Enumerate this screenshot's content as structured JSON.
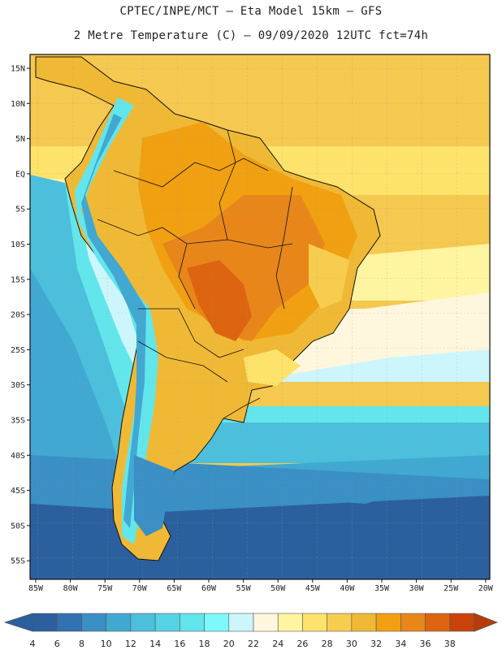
{
  "header": {
    "line1": "CPTEC/INPE/MCT –  Eta Model 15km – GFS",
    "line2": "2 Metre Temperature (C) – 09/09/2020 12UTC fct=74h"
  },
  "map": {
    "lat_labels": [
      "15N",
      "10N",
      "5N",
      "EQ",
      "5S",
      "10S",
      "15S",
      "20S",
      "25S",
      "30S",
      "35S",
      "40S",
      "45S",
      "50S",
      "55S"
    ],
    "lon_labels": [
      "85W",
      "80W",
      "75W",
      "70W",
      "65W",
      "60W",
      "55W",
      "50W",
      "45W",
      "40W",
      "35W",
      "30W",
      "25W",
      "20W"
    ],
    "lat_min": -58,
    "lat_max": 17,
    "lon_min": -86,
    "lon_max": -20
  },
  "colorbar": {
    "ticks": [
      "4",
      "6",
      "8",
      "10",
      "12",
      "14",
      "16",
      "18",
      "20",
      "22",
      "24",
      "26",
      "28",
      "30",
      "32",
      "34",
      "36",
      "38"
    ],
    "colors": [
      "#2c5f9e",
      "#3272b0",
      "#3a8fc4",
      "#41a8d2",
      "#4bbfdc",
      "#55d3e4",
      "#62e6ec",
      "#7ef9fb",
      "#ccf6fb",
      "#fff6de",
      "#fff4a0",
      "#fde36b",
      "#f7cd50",
      "#f0b935",
      "#f0a010",
      "#e8861a",
      "#dd6410",
      "#c9420a"
    ],
    "under_color": "#2c5f9e",
    "over_color": "#b93a0a"
  }
}
